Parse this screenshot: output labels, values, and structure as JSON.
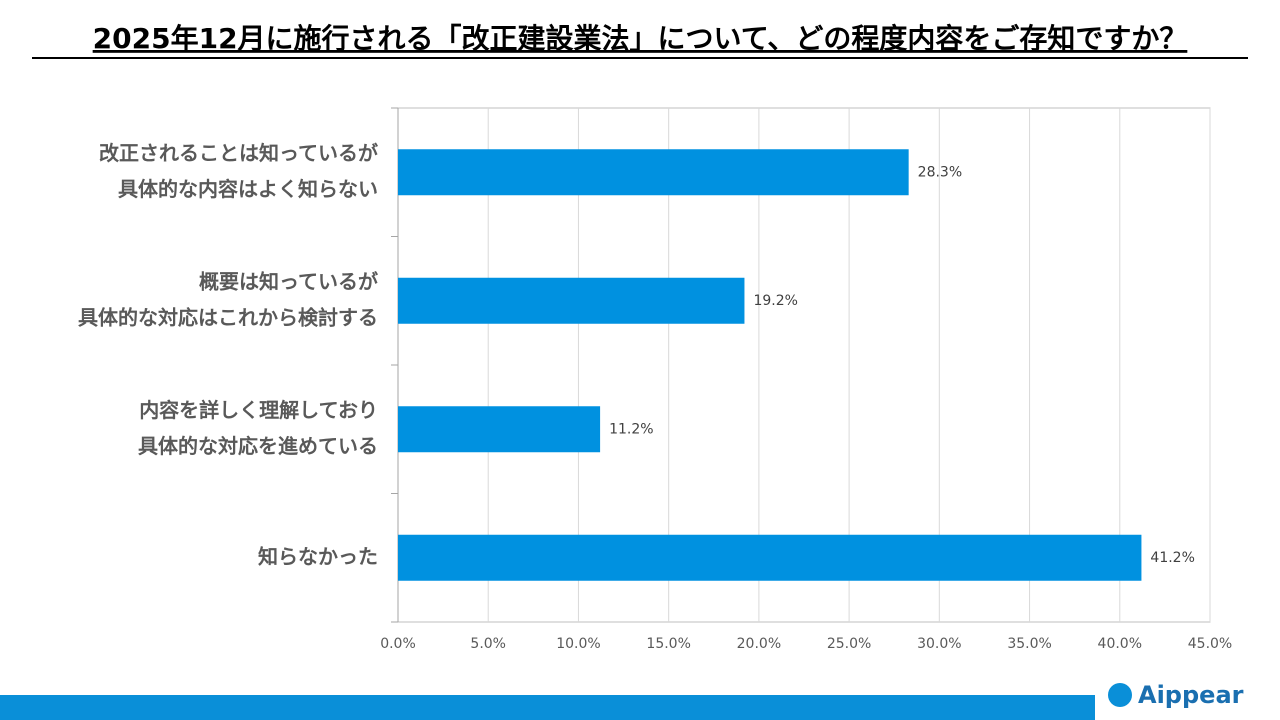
{
  "chart_data": {
    "type": "bar",
    "orientation": "horizontal",
    "title": "2025年12月に施行される「改正建設業法」について、どの程度内容をご存知ですか？",
    "categories": [
      [
        "改正されることは知っているが",
        "具体的な内容はよく知らない"
      ],
      [
        "概要は知っているが",
        "具体的な対応はこれから検討する"
      ],
      [
        "内容を詳しく理解しており",
        "具体的な対応を進めている"
      ],
      [
        "知らなかった"
      ]
    ],
    "values": [
      28.3,
      19.2,
      11.2,
      41.2
    ],
    "value_labels": [
      "28.3%",
      "19.2%",
      "11.2%",
      "41.2%"
    ],
    "color": "#0091e0",
    "xlim": [
      0,
      45
    ],
    "xticks": [
      {
        "value": 0,
        "label": "0.0%"
      },
      {
        "value": 5,
        "label": "5.0%"
      },
      {
        "value": 10,
        "label": "10.0%"
      },
      {
        "value": 15,
        "label": "15.0%"
      },
      {
        "value": 20,
        "label": "20.0%"
      },
      {
        "value": 25,
        "label": "25.0%"
      },
      {
        "value": 30,
        "label": "30.0%"
      },
      {
        "value": 35,
        "label": "35.0%"
      },
      {
        "value": 40,
        "label": "40.0%"
      },
      {
        "value": 45,
        "label": "45.0%"
      }
    ],
    "grid": true
  },
  "brand": "Aippear"
}
